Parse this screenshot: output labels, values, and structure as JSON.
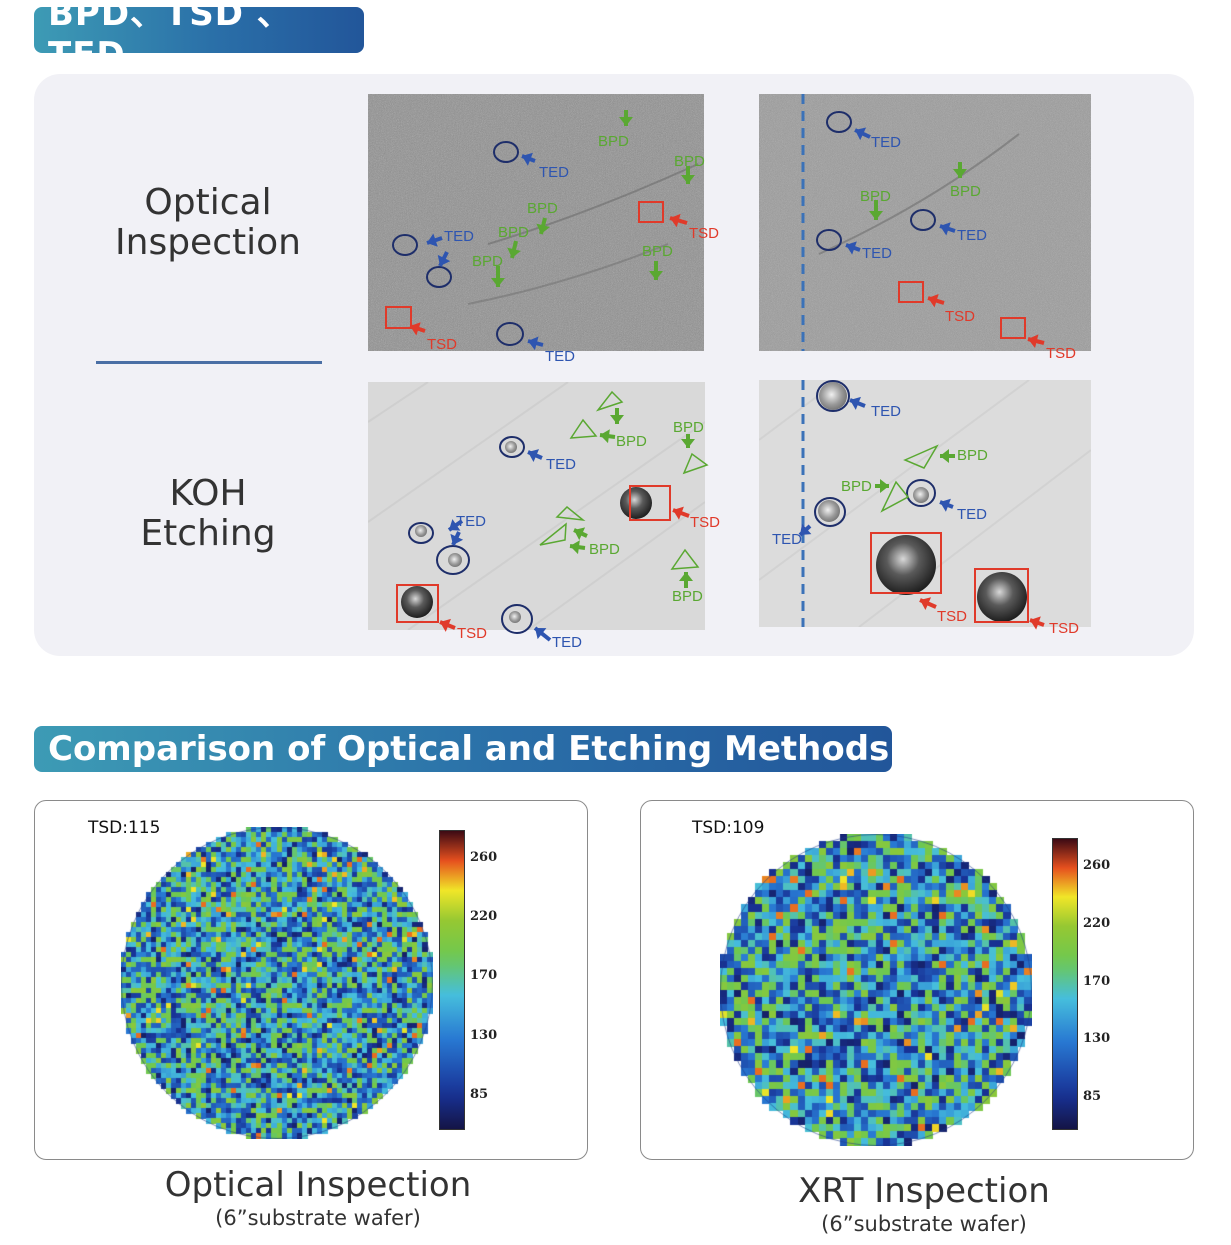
{
  "section1": {
    "title": "BPD、TSD 、TED"
  },
  "rows": [
    {
      "label_line1": "Optical",
      "label_line2": "Inspection"
    },
    {
      "label_line1": "KOH",
      "label_line2": "Etching"
    }
  ],
  "annotations": {
    "ted": "TED",
    "tsd": "TSD",
    "bpd": "BPD"
  },
  "colors": {
    "ted": "#2e55b0",
    "tsd": "#e03a2a",
    "bpd": "#5aa832",
    "circle": "#1e2e6a",
    "banner_start": "#3d9bb5",
    "banner_end": "#22569a"
  },
  "section2": {
    "title": "Comparison of Optical and Etching Methods"
  },
  "wafer_maps": [
    {
      "count_label": "TSD:115",
      "caption": "Optical Inspection",
      "subcaption": "(6”substrate wafer)",
      "colorbar_ticks": [
        "260",
        "220",
        "170",
        "130",
        "85"
      ]
    },
    {
      "count_label": "TSD:109",
      "caption": "XRT Inspection",
      "subcaption": "(6”substrate wafer)",
      "colorbar_ticks": [
        "260",
        "220",
        "170",
        "130",
        "85"
      ]
    }
  ]
}
